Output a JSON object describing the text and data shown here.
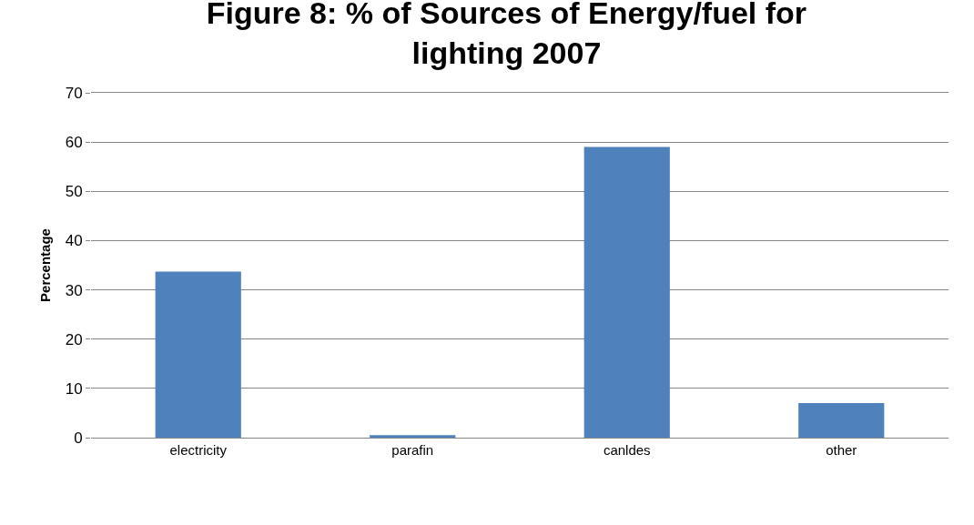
{
  "chart_data": {
    "type": "bar",
    "title": "Figure 8: % of Sources of Energy/fuel for lighting 2007",
    "ylabel": "Percentage",
    "categories": [
      "electricity",
      "parafin",
      "canldes",
      "other"
    ],
    "values": [
      33.7,
      0.5,
      59,
      7
    ],
    "color": "#4f81bd",
    "ylim": [
      0,
      70
    ],
    "yticks": [
      0,
      10,
      20,
      30,
      40,
      50,
      60,
      70
    ],
    "grid": "y",
    "legend": false
  }
}
